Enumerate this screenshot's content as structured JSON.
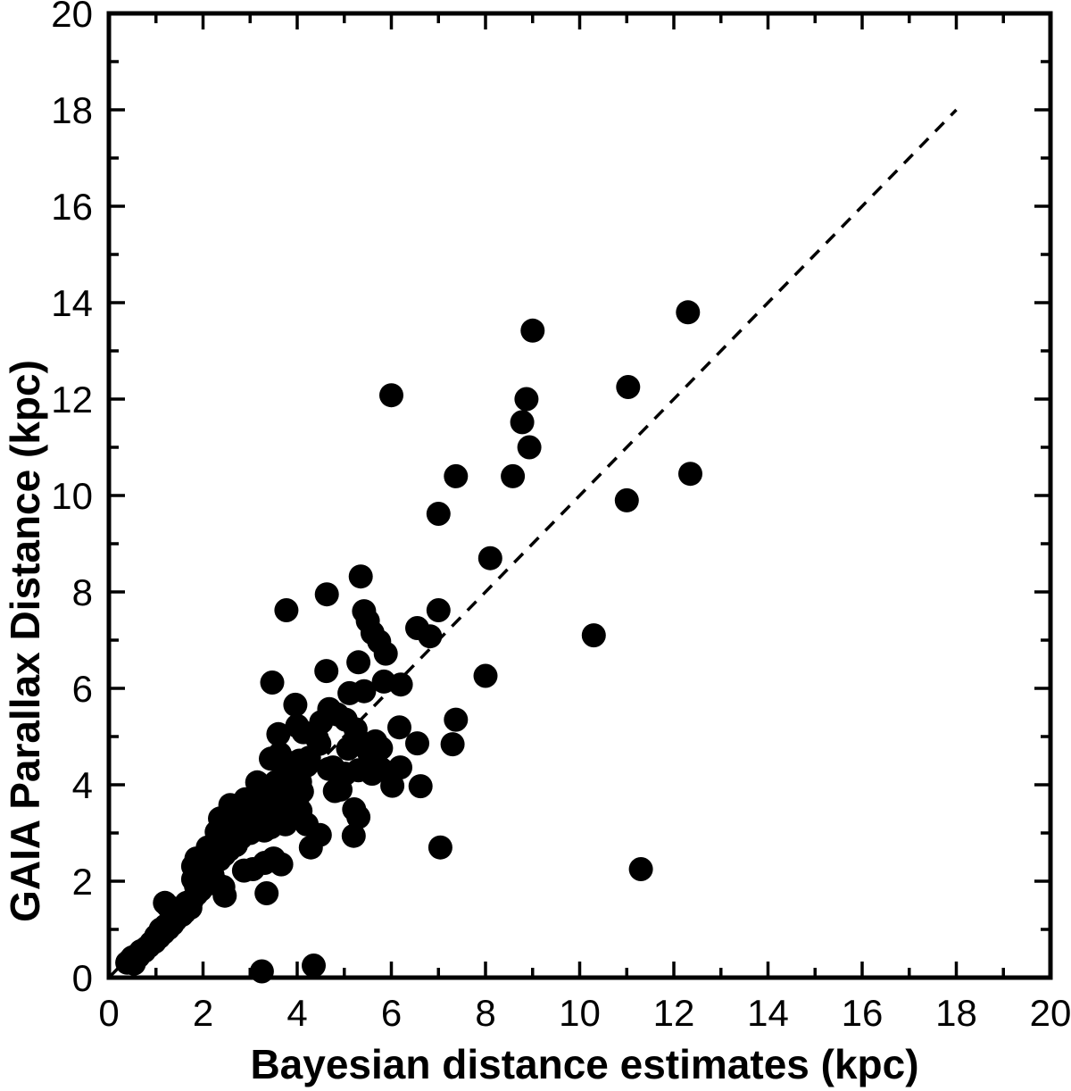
{
  "figure": {
    "background": "#ffffff",
    "ink_color": "#000000"
  },
  "chart_data": {
    "type": "scatter",
    "title": "",
    "xlabel": "Bayesian distance estimates (kpc)",
    "ylabel": "GAIA Parallax Distance (kpc)",
    "xlim": [
      0,
      20
    ],
    "ylim": [
      0,
      20
    ],
    "grid": false,
    "legend": "none",
    "xticks_major": [
      0,
      2,
      4,
      6,
      8,
      10,
      12,
      14,
      16,
      18,
      20
    ],
    "xticks_minor": [
      1,
      3,
      5,
      7,
      9,
      11,
      13,
      15,
      17,
      19
    ],
    "yticks_major": [
      0,
      2,
      4,
      6,
      8,
      10,
      12,
      14,
      16,
      18,
      20
    ],
    "yticks_minor": [
      1,
      3,
      5,
      7,
      9,
      11,
      13,
      15,
      17,
      19
    ],
    "xtick_labels": [
      "0",
      "2",
      "4",
      "6",
      "8",
      "10",
      "12",
      "14",
      "16",
      "18",
      "20"
    ],
    "ytick_labels": [
      "0",
      "2",
      "4",
      "6",
      "8",
      "10",
      "12",
      "14",
      "16",
      "18",
      "20"
    ],
    "identity_line": {
      "style": "dashed",
      "from": [
        0,
        0
      ],
      "to": [
        18,
        18
      ]
    },
    "marker": {
      "shape": "circle",
      "color": "#000000",
      "radius_px": 13.5
    },
    "points": [
      [
        12.3,
        13.8
      ],
      [
        9.0,
        13.42
      ],
      [
        11.03,
        12.25
      ],
      [
        6.0,
        12.08
      ],
      [
        8.87,
        12.0
      ],
      [
        8.78,
        11.52
      ],
      [
        8.93,
        11.0
      ],
      [
        7.37,
        10.4
      ],
      [
        8.58,
        10.4
      ],
      [
        12.35,
        10.45
      ],
      [
        11.0,
        9.9
      ],
      [
        7.0,
        9.62
      ],
      [
        8.1,
        8.7
      ],
      [
        10.3,
        7.1
      ],
      [
        5.35,
        8.32
      ],
      [
        4.63,
        7.95
      ],
      [
        3.77,
        7.62
      ],
      [
        5.42,
        7.6
      ],
      [
        5.5,
        7.4
      ],
      [
        7.0,
        7.62
      ],
      [
        6.55,
        7.25
      ],
      [
        6.82,
        7.08
      ],
      [
        5.6,
        7.15
      ],
      [
        5.74,
        6.97
      ],
      [
        5.88,
        6.72
      ],
      [
        5.3,
        6.54
      ],
      [
        4.62,
        6.36
      ],
      [
        3.47,
        6.12
      ],
      [
        8.0,
        6.26
      ],
      [
        6.2,
        6.08
      ],
      [
        5.84,
        6.14
      ],
      [
        5.11,
        5.9
      ],
      [
        5.42,
        5.94
      ],
      [
        3.96,
        5.66
      ],
      [
        4.68,
        5.57
      ],
      [
        4.85,
        5.46
      ],
      [
        5.03,
        5.35
      ],
      [
        4.51,
        5.3
      ],
      [
        7.37,
        5.35
      ],
      [
        6.17,
        5.19
      ],
      [
        5.24,
        5.15
      ],
      [
        4.0,
        5.22
      ],
      [
        3.6,
        5.05
      ],
      [
        4.13,
        5.09
      ],
      [
        4.42,
        4.96
      ],
      [
        4.47,
        4.85
      ],
      [
        6.55,
        4.86
      ],
      [
        7.3,
        4.84
      ],
      [
        5.33,
        4.9
      ],
      [
        5.66,
        4.9
      ],
      [
        5.78,
        4.76
      ],
      [
        5.52,
        4.68
      ],
      [
        3.63,
        4.64
      ],
      [
        3.44,
        4.54
      ],
      [
        4.2,
        4.4
      ],
      [
        4.67,
        4.33
      ],
      [
        4.89,
        4.24
      ],
      [
        5.78,
        4.33
      ],
      [
        5.62,
        4.72
      ],
      [
        5.08,
        4.75
      ],
      [
        4.76,
        4.36
      ],
      [
        5.02,
        4.23
      ],
      [
        5.3,
        4.3
      ],
      [
        5.59,
        4.23
      ],
      [
        6.19,
        4.36
      ],
      [
        3.15,
        4.05
      ],
      [
        6.02,
        3.98
      ],
      [
        6.62,
        3.97
      ],
      [
        4.8,
        3.87
      ],
      [
        4.92,
        3.9
      ],
      [
        3.3,
        3.82
      ],
      [
        3.42,
        3.96
      ],
      [
        3.55,
        4.06
      ],
      [
        3.7,
        4.11
      ],
      [
        3.85,
        3.96
      ],
      [
        3.95,
        4.2
      ],
      [
        4.06,
        4.06
      ],
      [
        4.1,
        3.86
      ],
      [
        3.9,
        3.75
      ],
      [
        3.75,
        4.3
      ],
      [
        4.05,
        4.5
      ],
      [
        4.25,
        4.56
      ],
      [
        3.9,
        4.45
      ],
      [
        2.9,
        3.7
      ],
      [
        3.05,
        3.56
      ],
      [
        3.2,
        3.66
      ],
      [
        3.35,
        3.66
      ],
      [
        3.5,
        3.6
      ],
      [
        3.65,
        3.76
      ],
      [
        3.8,
        3.6
      ],
      [
        4.0,
        3.7
      ],
      [
        3.55,
        3.4
      ],
      [
        3.6,
        3.26
      ],
      [
        3.7,
        3.46
      ],
      [
        2.58,
        3.58
      ],
      [
        2.71,
        3.55
      ],
      [
        3.41,
        3.52
      ],
      [
        2.36,
        3.3
      ],
      [
        2.29,
        3.02
      ],
      [
        3.18,
        3.36
      ],
      [
        2.93,
        3.18
      ],
      [
        3.44,
        3.12
      ],
      [
        3.75,
        3.18
      ],
      [
        4.07,
        3.46
      ],
      [
        4.2,
        3.18
      ],
      [
        4.48,
        2.96
      ],
      [
        4.29,
        2.7
      ],
      [
        5.21,
        3.49
      ],
      [
        5.3,
        3.33
      ],
      [
        5.2,
        2.94
      ],
      [
        3.25,
        3.5
      ],
      [
        3.1,
        3.1
      ],
      [
        3.0,
        3.0
      ],
      [
        2.85,
        3.05
      ],
      [
        2.75,
        3.3
      ],
      [
        2.65,
        3.2
      ],
      [
        3.3,
        3.05
      ],
      [
        3.05,
        3.3
      ],
      [
        3.2,
        3.2
      ],
      [
        2.1,
        2.7
      ],
      [
        1.86,
        2.47
      ],
      [
        1.79,
        2.31
      ],
      [
        2.2,
        2.13
      ],
      [
        2.62,
        2.87
      ],
      [
        3.5,
        2.47
      ],
      [
        3.66,
        2.35
      ],
      [
        3.31,
        2.38
      ],
      [
        2.87,
        2.22
      ],
      [
        3.06,
        2.25
      ],
      [
        1.92,
        2.16
      ],
      [
        2.05,
        1.92
      ],
      [
        1.79,
        2.04
      ],
      [
        2.3,
        1.94
      ],
      [
        2.43,
        1.88
      ],
      [
        2.46,
        1.7
      ],
      [
        2.45,
        2.55
      ],
      [
        2.35,
        2.45
      ],
      [
        2.5,
        2.8
      ],
      [
        2.6,
        3.0
      ],
      [
        2.55,
        2.65
      ],
      [
        2.7,
        2.75
      ],
      [
        2.8,
        2.9
      ],
      [
        2.25,
        2.4
      ],
      [
        2.15,
        2.28
      ],
      [
        2.0,
        2.06
      ],
      [
        1.26,
        1.48
      ],
      [
        1.51,
        1.42
      ],
      [
        1.61,
        1.36
      ],
      [
        1.73,
        1.45
      ],
      [
        1.76,
        1.6
      ],
      [
        1.86,
        1.73
      ],
      [
        1.95,
        1.82
      ],
      [
        1.19,
        1.55
      ],
      [
        1.42,
        1.2
      ],
      [
        1.35,
        1.11
      ],
      [
        1.26,
        1.02
      ],
      [
        1.16,
        0.93
      ],
      [
        1.07,
        0.84
      ],
      [
        1.55,
        1.3
      ],
      [
        1.65,
        1.55
      ],
      [
        1.85,
        1.9
      ],
      [
        1.3,
        1.15
      ],
      [
        1.45,
        1.3
      ],
      [
        1.1,
        1.0
      ],
      [
        1.21,
        1.08
      ],
      [
        0.97,
        0.74
      ],
      [
        0.85,
        0.65
      ],
      [
        0.75,
        0.55
      ],
      [
        0.59,
        0.46
      ],
      [
        0.53,
        0.29
      ],
      [
        0.39,
        0.31
      ],
      [
        0.45,
        0.36
      ],
      [
        0.5,
        0.42
      ],
      [
        0.63,
        0.44
      ],
      [
        0.68,
        0.55
      ],
      [
        0.8,
        0.62
      ],
      [
        0.9,
        0.72
      ],
      [
        1.0,
        0.86
      ],
      [
        3.25,
        0.13
      ],
      [
        4.35,
        0.25
      ],
      [
        3.35,
        1.75
      ],
      [
        7.04,
        2.7
      ],
      [
        11.3,
        2.25
      ]
    ]
  }
}
